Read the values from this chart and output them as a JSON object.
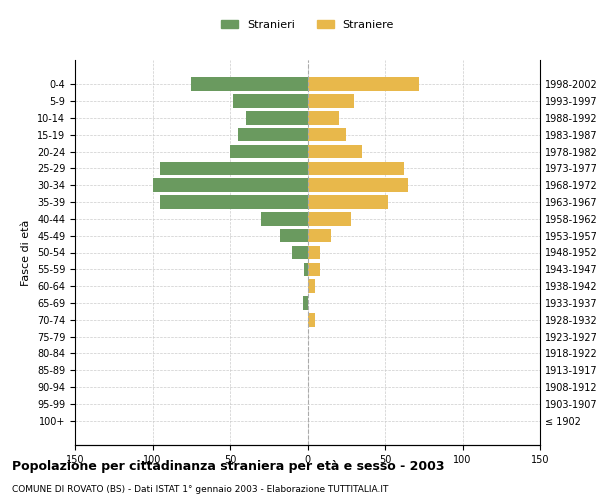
{
  "age_groups": [
    "100+",
    "95-99",
    "90-94",
    "85-89",
    "80-84",
    "75-79",
    "70-74",
    "65-69",
    "60-64",
    "55-59",
    "50-54",
    "45-49",
    "40-44",
    "35-39",
    "30-34",
    "25-29",
    "20-24",
    "15-19",
    "10-14",
    "5-9",
    "0-4"
  ],
  "birth_years": [
    "≤ 1902",
    "1903-1907",
    "1908-1912",
    "1913-1917",
    "1918-1922",
    "1923-1927",
    "1928-1932",
    "1933-1937",
    "1938-1942",
    "1943-1947",
    "1948-1952",
    "1953-1957",
    "1958-1962",
    "1963-1967",
    "1968-1972",
    "1973-1977",
    "1978-1982",
    "1983-1987",
    "1988-1992",
    "1993-1997",
    "1998-2002"
  ],
  "males": [
    0,
    0,
    0,
    0,
    0,
    0,
    0,
    3,
    0,
    2,
    10,
    18,
    30,
    95,
    100,
    95,
    50,
    45,
    40,
    48,
    75
  ],
  "females": [
    0,
    0,
    0,
    0,
    0,
    0,
    5,
    0,
    5,
    8,
    8,
    15,
    28,
    52,
    65,
    62,
    35,
    25,
    20,
    30,
    72
  ],
  "male_color": "#6a9a5f",
  "female_color": "#e8b84b",
  "background_color": "#ffffff",
  "grid_color": "#cccccc",
  "center_line_color": "#aaaaaa",
  "title": "Popolazione per cittadinanza straniera per età e sesso - 2003",
  "subtitle": "COMUNE DI ROVATO (BS) - Dati ISTAT 1° gennaio 2003 - Elaborazione TUTTITALIA.IT",
  "ylabel_left": "Fasce di età",
  "legend_males": "Stranieri",
  "legend_females": "Straniere",
  "xlim": 150,
  "bar_height": 0.8
}
